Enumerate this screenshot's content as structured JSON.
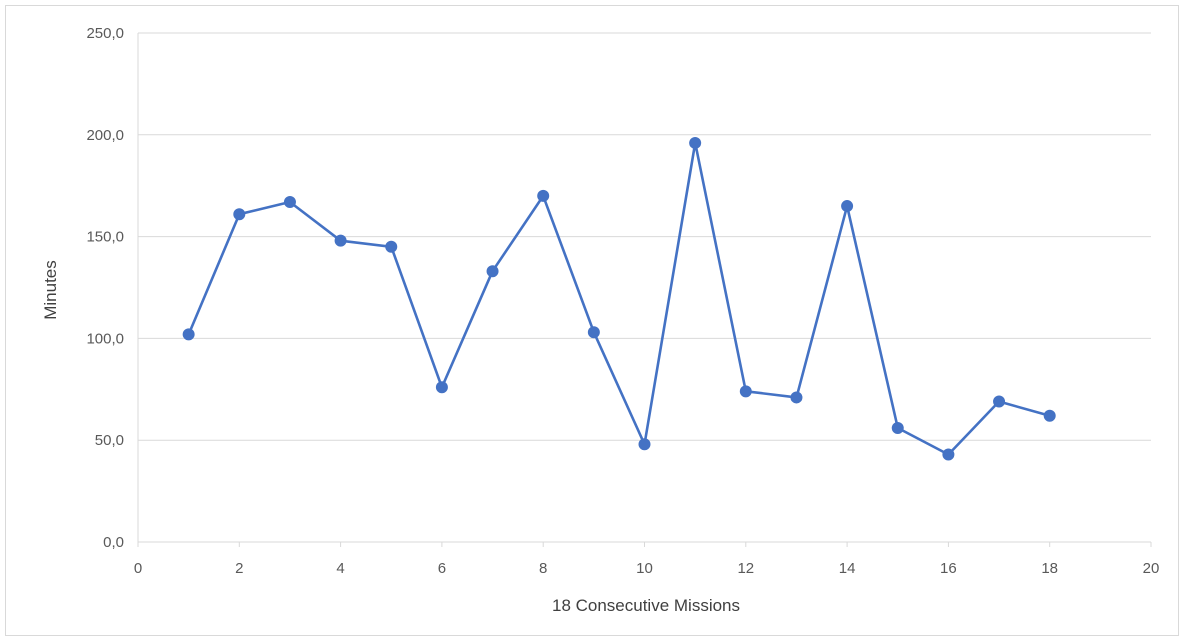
{
  "chart_data": {
    "type": "scatter",
    "title": "",
    "xlabel": "18 Consecutive Missions",
    "ylabel": "Minutes",
    "xlim": [
      0,
      20
    ],
    "ylim": [
      0,
      250
    ],
    "x_ticks": [
      0,
      2,
      4,
      6,
      8,
      10,
      12,
      14,
      16,
      18,
      20
    ],
    "x_tick_labels": [
      "0",
      "2",
      "4",
      "6",
      "8",
      "10",
      "12",
      "14",
      "16",
      "18",
      "20"
    ],
    "y_ticks": [
      0,
      50,
      100,
      150,
      200,
      250
    ],
    "y_tick_labels": [
      "0,0",
      "50,0",
      "100,0",
      "150,0",
      "200,0",
      "250,0"
    ],
    "grid": "horizontal",
    "legend": "none",
    "series": [
      {
        "color": "#4472c4",
        "marker": "circle",
        "line": "straight",
        "x": [
          1,
          2,
          3,
          4,
          5,
          6,
          7,
          8,
          9,
          10,
          11,
          12,
          13,
          14,
          15,
          16,
          17,
          18
        ],
        "y": [
          102,
          161,
          167,
          148,
          145,
          76,
          133,
          170,
          103,
          48,
          196,
          74,
          71,
          165,
          56,
          43,
          69,
          62
        ]
      }
    ]
  }
}
